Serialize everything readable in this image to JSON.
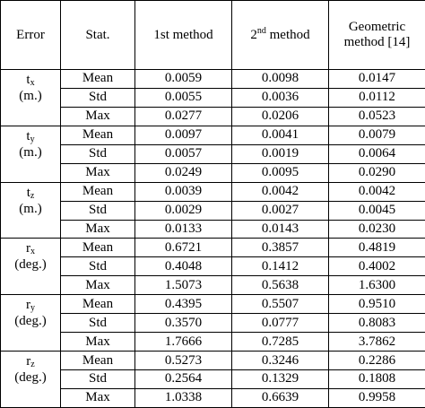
{
  "header": {
    "col1": "Error",
    "col2": "Stat.",
    "col3": "1st method",
    "col4_main": "2",
    "col4_sup": "nd",
    "col4_rest": " method",
    "col5_line1": "Geometric",
    "col5_line2": "method [14]"
  },
  "groups": [
    {
      "sym": "t",
      "sub": "x",
      "unit": "(m.)",
      "rows": [
        {
          "stat": "Mean",
          "m1": "0.0059",
          "m2": "0.0098",
          "geo": "0.0147"
        },
        {
          "stat": "Std",
          "m1": "0.0055",
          "m2": "0.0036",
          "geo": "0.0112"
        },
        {
          "stat": "Max",
          "m1": "0.0277",
          "m2": "0.0206",
          "geo": "0.0523"
        }
      ]
    },
    {
      "sym": "t",
      "sub": "y",
      "unit": "(m.)",
      "rows": [
        {
          "stat": "Mean",
          "m1": "0.0097",
          "m2": "0.0041",
          "geo": "0.0079"
        },
        {
          "stat": "Std",
          "m1": "0.0057",
          "m2": "0.0019",
          "geo": "0.0064"
        },
        {
          "stat": "Max",
          "m1": "0.0249",
          "m2": "0.0095",
          "geo": "0.0290"
        }
      ]
    },
    {
      "sym": "t",
      "sub": "z",
      "unit": "(m.)",
      "rows": [
        {
          "stat": "Mean",
          "m1": "0.0039",
          "m2": "0.0042",
          "geo": "0.0042"
        },
        {
          "stat": "Std",
          "m1": "0.0029",
          "m2": "0.0027",
          "geo": "0.0045"
        },
        {
          "stat": "Max",
          "m1": "0.0133",
          "m2": "0.0143",
          "geo": "0.0230"
        }
      ]
    },
    {
      "sym": "r",
      "sub": "x",
      "unit": "(deg.)",
      "rows": [
        {
          "stat": "Mean",
          "m1": "0.6721",
          "m2": "0.3857",
          "geo": "0.4819"
        },
        {
          "stat": "Std",
          "m1": "0.4048",
          "m2": "0.1412",
          "geo": "0.4002"
        },
        {
          "stat": "Max",
          "m1": "1.5073",
          "m2": "0.5638",
          "geo": "1.6300"
        }
      ]
    },
    {
      "sym": "r",
      "sub": "y",
      "unit": "(deg.)",
      "rows": [
        {
          "stat": "Mean",
          "m1": "0.4395",
          "m2": "0.5507",
          "geo": "0.9510"
        },
        {
          "stat": "Std",
          "m1": "0.3570",
          "m2": "0.0777",
          "geo": "0.8083"
        },
        {
          "stat": "Max",
          "m1": "1.7666",
          "m2": "0.7285",
          "geo": "3.7862"
        }
      ]
    },
    {
      "sym": "r",
      "sub": "z",
      "unit": "(deg.)",
      "rows": [
        {
          "stat": "Mean",
          "m1": "0.5273",
          "m2": "0.3246",
          "geo": "0.2286"
        },
        {
          "stat": "Std",
          "m1": "0.2564",
          "m2": "0.1329",
          "geo": "0.1808"
        },
        {
          "stat": "Max",
          "m1": "1.0338",
          "m2": "0.6639",
          "geo": "0.9958"
        }
      ]
    }
  ]
}
